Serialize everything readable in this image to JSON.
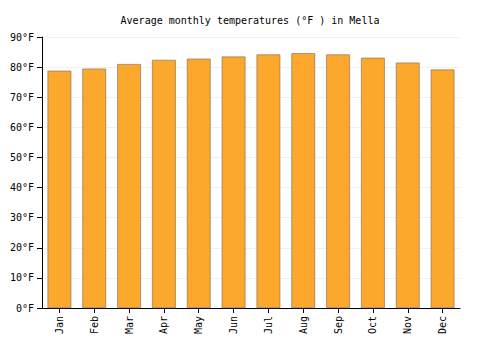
{
  "chart_data": {
    "type": "bar",
    "title": "Average monthly temperatures (°F ) in Mella",
    "categories": [
      "Jan",
      "Feb",
      "Mar",
      "Apr",
      "May",
      "Jun",
      "Jul",
      "Aug",
      "Sep",
      "Oct",
      "Nov",
      "Dec"
    ],
    "values": [
      78.8,
      79.5,
      81.0,
      82.4,
      82.8,
      83.5,
      84.2,
      84.6,
      84.2,
      83.1,
      81.5,
      79.2
    ],
    "color": "#fca82c",
    "ylim": [
      0,
      90
    ],
    "yticks": [
      {
        "value": 0,
        "label": "0°F"
      },
      {
        "value": 10,
        "label": "10°F"
      },
      {
        "value": 20,
        "label": "20°F"
      },
      {
        "value": 30,
        "label": "30°F"
      },
      {
        "value": 40,
        "label": "40°F"
      },
      {
        "value": 50,
        "label": "50°F"
      },
      {
        "value": 60,
        "label": "60°F"
      },
      {
        "value": 70,
        "label": "70°F"
      },
      {
        "value": 80,
        "label": "80°F"
      },
      {
        "value": 90,
        "label": "90°F"
      }
    ],
    "grid": true
  }
}
